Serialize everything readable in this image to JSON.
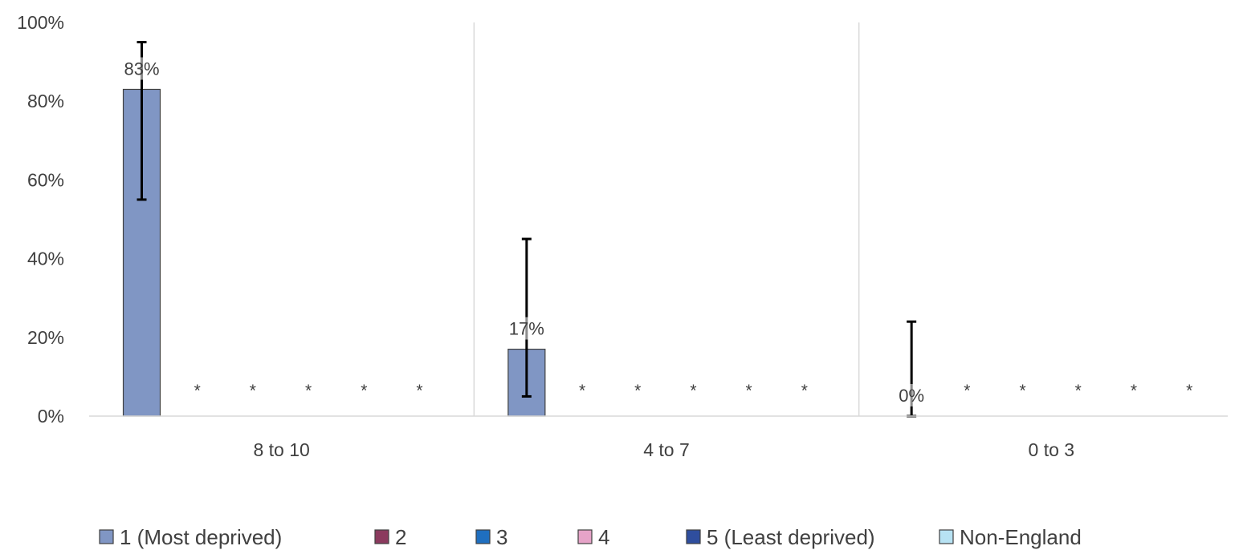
{
  "chart_data": {
    "type": "bar",
    "title": "",
    "xlabel": "",
    "ylabel": "",
    "ylim": [
      0,
      1
    ],
    "yticks": [
      0,
      0.2,
      0.4,
      0.6,
      0.8,
      1.0
    ],
    "ytick_labels": [
      "0%",
      "20%",
      "40%",
      "60%",
      "80%",
      "100%"
    ],
    "categories": [
      "8 to 10",
      "4 to 7",
      "0 to 3"
    ],
    "series": [
      {
        "name": "1 (Most deprived)",
        "color": "#8096C4",
        "values": [
          0.83,
          0.17,
          0.0
        ],
        "labels": [
          "83%",
          "17%",
          "0%"
        ],
        "error_low": [
          0.55,
          0.05,
          0.0
        ],
        "error_high": [
          0.95,
          0.45,
          0.24
        ]
      },
      {
        "name": "2",
        "color": "#8B3A5E",
        "values": [
          null,
          null,
          null
        ],
        "labels": [
          "*",
          "*",
          "*"
        ]
      },
      {
        "name": "3",
        "color": "#1F6FC0",
        "values": [
          null,
          null,
          null
        ],
        "labels": [
          "*",
          "*",
          "*"
        ]
      },
      {
        "name": "4",
        "color": "#E6A3C8",
        "values": [
          null,
          null,
          null
        ],
        "labels": [
          "*",
          "*",
          "*"
        ]
      },
      {
        "name": "5 (Least deprived)",
        "color": "#2F4E9E",
        "values": [
          null,
          null,
          null
        ],
        "labels": [
          "*",
          "*",
          "*"
        ]
      },
      {
        "name": "Non-England",
        "color": "#B7E2F3",
        "values": [
          null,
          null,
          null
        ],
        "labels": [
          "*",
          "*",
          "*"
        ]
      }
    ],
    "legend_position": "bottom",
    "grid": false,
    "category_separators": true
  }
}
